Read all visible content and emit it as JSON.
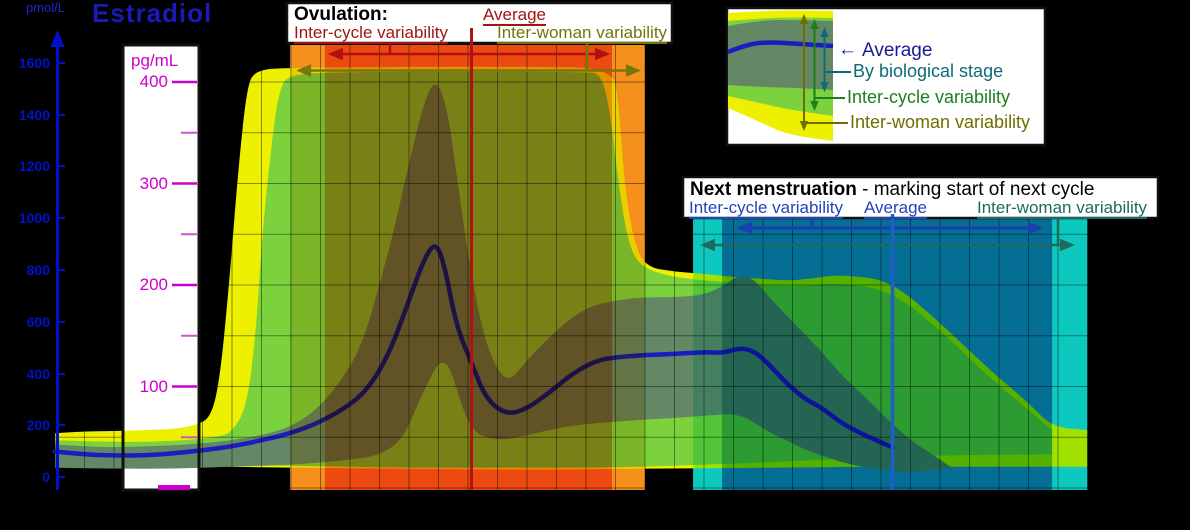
{
  "title": {
    "text": "Estradiol",
    "left_unit": "pmol/L",
    "right_unit": "pg/mL"
  },
  "colors": {
    "background": "#000000",
    "average_line": "#1c1cc0",
    "band_inter_woman": "#edf000",
    "band_inter_cycle": "#7bd23c",
    "band_bio_stage": "#648766",
    "ovulation_outer": "#f8a72b",
    "ovulation_inner": "#f5782c",
    "ovulation_accent": "#b01212",
    "next_outer": "#12d5cd",
    "next_inner": "#0c94ba",
    "next_accent": "#1f5fc8",
    "axis_blue": "#0011cc",
    "scale_magenta": "#cc00cc",
    "olive": "#77770a",
    "legend_navy": "#1a1a96",
    "legend_teal": "#0c6b78",
    "legend_green": "#1e7d1e",
    "legend_olive": "#6f6f00",
    "next_label_blue": "#2244bb",
    "next_label_teal": "#1d6b5f"
  },
  "axes": {
    "left_pmol": {
      "unit": "pmol/L",
      "labels": [
        "1600",
        "1400",
        "1200",
        "1000",
        "800",
        "600",
        "400",
        "200",
        "0"
      ]
    },
    "right_pg": {
      "unit": "pg/mL",
      "labels": [
        "400",
        "300",
        "200",
        "100"
      ]
    }
  },
  "chart_data": {
    "type": "area",
    "title": "Estradiol",
    "x_unit": "cycle_day",
    "y_unit": "pg/mL",
    "xlim": [
      0,
      35
    ],
    "ylim": [
      0,
      430
    ],
    "grid": {
      "x_step_days": 1,
      "y_step_pg": 50
    },
    "series": [
      {
        "name": "Average",
        "color": "#1c1cc0",
        "points": [
          [
            0,
            36
          ],
          [
            1,
            33
          ],
          [
            2,
            32
          ],
          [
            3,
            32
          ],
          [
            4,
            34
          ],
          [
            5,
            37
          ],
          [
            6,
            41
          ],
          [
            7,
            47
          ],
          [
            8,
            54
          ],
          [
            9,
            65
          ],
          [
            10,
            82
          ],
          [
            10.5,
            95
          ],
          [
            11,
            115
          ],
          [
            11.5,
            145
          ],
          [
            12,
            185
          ],
          [
            12.5,
            225
          ],
          [
            12.9,
            243
          ],
          [
            13.2,
            220
          ],
          [
            13.6,
            160
          ],
          [
            14.1,
            125
          ],
          [
            14.6,
            88
          ],
          [
            15.3,
            72
          ],
          [
            16,
            78
          ],
          [
            16.8,
            95
          ],
          [
            17.5,
            112
          ],
          [
            18.3,
            125
          ],
          [
            19,
            129
          ],
          [
            20,
            131
          ],
          [
            21,
            132
          ],
          [
            22,
            134
          ],
          [
            22.7,
            133
          ],
          [
            23.2,
            138
          ],
          [
            23.7,
            135
          ],
          [
            24.2,
            122
          ],
          [
            24.8,
            103
          ],
          [
            25.4,
            88
          ],
          [
            26,
            79
          ],
          [
            26.6,
            65
          ],
          [
            27.3,
            54
          ],
          [
            28,
            45
          ],
          [
            28.4,
            40
          ]
        ]
      }
    ],
    "bands": [
      {
        "name": "Inter-woman variability",
        "color": "#edf000",
        "top": [
          [
            0,
            54
          ],
          [
            1,
            56
          ],
          [
            2,
            56
          ],
          [
            3,
            57
          ],
          [
            4,
            58
          ],
          [
            4.8,
            62
          ],
          [
            5.3,
            70
          ],
          [
            5.6,
            110
          ],
          [
            5.9,
            200
          ],
          [
            6.2,
            310
          ],
          [
            6.5,
            395
          ],
          [
            6.8,
            412
          ],
          [
            8,
            414
          ],
          [
            12,
            415
          ],
          [
            16,
            415
          ],
          [
            18.9,
            414
          ],
          [
            19.1,
            380
          ],
          [
            19.3,
            300
          ],
          [
            19.6,
            245
          ],
          [
            20,
            218
          ],
          [
            21,
            213
          ],
          [
            22,
            211
          ],
          [
            23,
            208
          ],
          [
            24,
            206
          ],
          [
            25,
            204
          ],
          [
            26,
            208
          ],
          [
            26.6,
            210
          ],
          [
            28.3,
            205
          ],
          [
            30,
            163
          ],
          [
            31.7,
            116
          ],
          [
            33,
            84
          ],
          [
            33.8,
            60
          ],
          [
            35,
            57
          ]
        ],
        "bottom": [
          [
            0,
            25
          ],
          [
            2,
            23
          ],
          [
            4,
            22
          ],
          [
            6,
            21
          ],
          [
            8,
            20
          ],
          [
            12,
            19
          ],
          [
            16,
            18
          ],
          [
            20,
            19
          ],
          [
            24,
            20
          ],
          [
            28,
            21
          ],
          [
            31,
            21
          ],
          [
            35,
            21
          ]
        ]
      },
      {
        "name": "Inter-cycle variability",
        "color": "#7bd23c",
        "top": [
          [
            0,
            47
          ],
          [
            2,
            45
          ],
          [
            4,
            46
          ],
          [
            5.5,
            50
          ],
          [
            6,
            55
          ],
          [
            6.5,
            80
          ],
          [
            6.8,
            150
          ],
          [
            7,
            240
          ],
          [
            7.3,
            330
          ],
          [
            7.6,
            395
          ],
          [
            8,
            408
          ],
          [
            10,
            410
          ],
          [
            14,
            410
          ],
          [
            18,
            410
          ],
          [
            18.5,
            408
          ],
          [
            18.8,
            375
          ],
          [
            19.1,
            300
          ],
          [
            19.4,
            245
          ],
          [
            19.8,
            218
          ],
          [
            21,
            207
          ],
          [
            23,
            202
          ],
          [
            25,
            198
          ],
          [
            26.6,
            202
          ],
          [
            28.3,
            195
          ],
          [
            30,
            156
          ],
          [
            31.7,
            108
          ],
          [
            33,
            77
          ],
          [
            33.8,
            57
          ]
        ],
        "bottom": [
          [
            0,
            26
          ],
          [
            2,
            25
          ],
          [
            4,
            24
          ],
          [
            6,
            23
          ],
          [
            8,
            22
          ],
          [
            10,
            21
          ],
          [
            12,
            20
          ],
          [
            14,
            20
          ],
          [
            16,
            20
          ],
          [
            18,
            20
          ],
          [
            20,
            21
          ],
          [
            22,
            23
          ],
          [
            24,
            25
          ],
          [
            26,
            28
          ],
          [
            28,
            30
          ],
          [
            30,
            32
          ],
          [
            32,
            33
          ],
          [
            33.8,
            33
          ]
        ]
      },
      {
        "name": "By biological stage",
        "color": "#648766",
        "top": [
          [
            0,
            43
          ],
          [
            1,
            41
          ],
          [
            2,
            40
          ],
          [
            3,
            41
          ],
          [
            4,
            42
          ],
          [
            5,
            44
          ],
          [
            6,
            47
          ],
          [
            7,
            52
          ],
          [
            8,
            60
          ],
          [
            9,
            80
          ],
          [
            10,
            118
          ],
          [
            10.5,
            150
          ],
          [
            11,
            200
          ],
          [
            11.5,
            255
          ],
          [
            12,
            320
          ],
          [
            12.5,
            380
          ],
          [
            12.9,
            404
          ],
          [
            13.3,
            375
          ],
          [
            13.7,
            290
          ],
          [
            14.1,
            212
          ],
          [
            14.6,
            140
          ],
          [
            15.3,
            101
          ],
          [
            16,
            126
          ],
          [
            17,
            156
          ],
          [
            18,
            178
          ],
          [
            19,
            185
          ],
          [
            20,
            188
          ],
          [
            21,
            188
          ],
          [
            22,
            190
          ],
          [
            22.7,
            200
          ],
          [
            23.2,
            210
          ],
          [
            23.7,
            206
          ],
          [
            24.2,
            188
          ],
          [
            24.8,
            170
          ],
          [
            25.4,
            152
          ],
          [
            26,
            134
          ],
          [
            26.6,
            113
          ],
          [
            27.3,
            94
          ],
          [
            28,
            74
          ],
          [
            28.4,
            63
          ],
          [
            29,
            47
          ],
          [
            29.7,
            34
          ],
          [
            30.4,
            20
          ]
        ],
        "bottom": [
          [
            0,
            20
          ],
          [
            2,
            19
          ],
          [
            4,
            19
          ],
          [
            6,
            21
          ],
          [
            8,
            23
          ],
          [
            9,
            25
          ],
          [
            10,
            28
          ],
          [
            11,
            32
          ],
          [
            11.8,
            48
          ],
          [
            12.4,
            90
          ],
          [
            13.2,
            136
          ],
          [
            13.8,
            80
          ],
          [
            14.1,
            60
          ],
          [
            14.5,
            50
          ],
          [
            15.3,
            47
          ],
          [
            16.4,
            55
          ],
          [
            17.6,
            62
          ],
          [
            19.2,
            66
          ],
          [
            21,
            69
          ],
          [
            22,
            71
          ],
          [
            23.2,
            74
          ],
          [
            24.2,
            55
          ],
          [
            24.8,
            47
          ],
          [
            25.4,
            38
          ],
          [
            26,
            32
          ],
          [
            26.6,
            26
          ],
          [
            27.3,
            21
          ],
          [
            28,
            18
          ],
          [
            29.3,
            15
          ],
          [
            30.4,
            20
          ]
        ]
      }
    ],
    "markers": {
      "ovulation": {
        "label": "Ovulation",
        "average_day": 14.12,
        "inter_cycle_days": [
          9.15,
          18.88
        ],
        "inter_woman_days": [
          7.97,
          20.0
        ]
      },
      "next_menstruation": {
        "label": "Next menstruation",
        "average_day": 28.39,
        "inter_cycle_days": [
          22.61,
          33.8
        ],
        "inter_woman_days": [
          21.63,
          35.0
        ]
      }
    }
  },
  "boxes": {
    "ovulation": {
      "title": "Ovulation:",
      "average": "Average",
      "inter_cycle": "Inter-cycle variability",
      "inter_woman": "Inter-woman variability"
    },
    "next": {
      "title": "Next menstruation",
      "subtitle": " - marking start of next cycle",
      "inter_cycle": "Inter-cycle variability",
      "average": "Average",
      "inter_woman": "Inter-woman variability"
    },
    "legend": {
      "arrow": "←",
      "average": "Average",
      "bio_stage": "By biological stage",
      "inter_cycle": "Inter-cycle variability",
      "inter_woman": "Inter-woman variability"
    }
  }
}
